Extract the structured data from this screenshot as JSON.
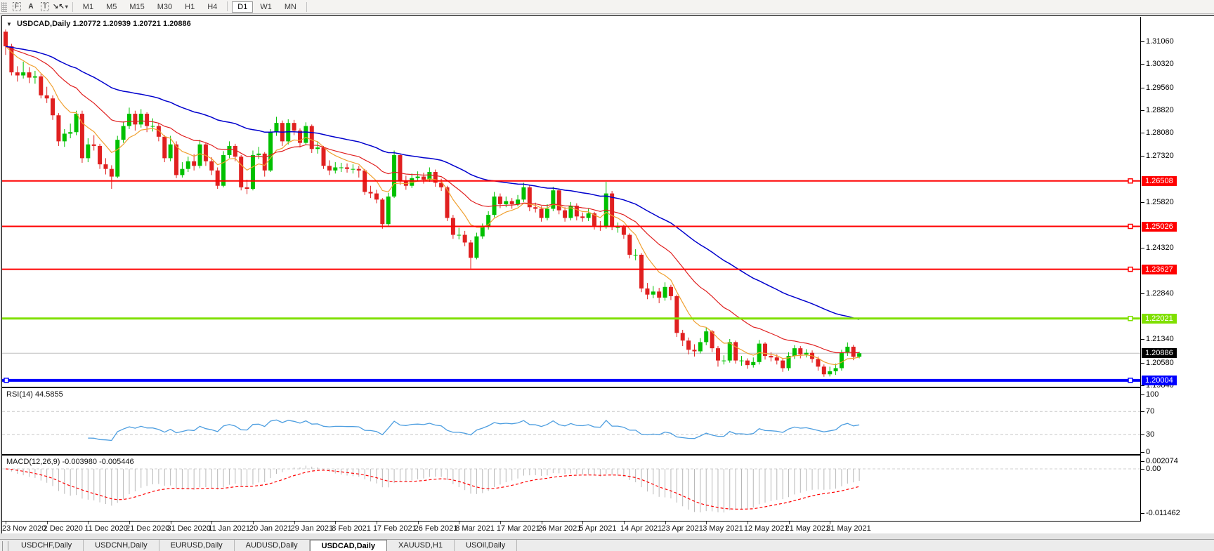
{
  "toolbar": {
    "icons": [
      {
        "name": "fibo-grid-icon",
        "glyph": "F"
      },
      {
        "name": "text-tool-icon",
        "glyph": "A"
      },
      {
        "name": "label-tool-icon",
        "glyph": "T"
      },
      {
        "name": "arrows-tool-icon",
        "glyph": "↘↖",
        "caret": "▾"
      }
    ],
    "timeframes": [
      "M1",
      "M5",
      "M15",
      "M30",
      "H1",
      "H4",
      "D1",
      "W1",
      "MN"
    ],
    "active_timeframe": "D1"
  },
  "chart_header": {
    "collapse_arrow": "▼",
    "symbol": "USDCAD,Daily",
    "open": "1.20772",
    "high": "1.20939",
    "low": "1.20721",
    "close": "1.20886"
  },
  "colors": {
    "bull": "#00C000",
    "bear": "#E02020",
    "ma_fast": "#F0A030",
    "ma_mid": "#E02020",
    "ma_slow": "#0000CD",
    "silver": "#C0C0C0",
    "level_red": "#FF0000",
    "level_green": "#80E000",
    "level_blue": "#0000FF",
    "rsi_line": "#4D9EE0",
    "macd_hist": "#B8B8B8",
    "macd_signal": "#FF0000"
  },
  "price_axis": {
    "ticks": [
      "1.31060",
      "1.30320",
      "1.29560",
      "1.28820",
      "1.28080",
      "1.27320",
      "1.25820",
      "1.24320",
      "1.22840",
      "1.21340",
      "1.20580",
      "1.19840"
    ],
    "badges": [
      {
        "text": "1.26508",
        "value": 1.26508,
        "color": "#FF0000"
      },
      {
        "text": "1.25026",
        "value": 1.25026,
        "color": "#FF0000"
      },
      {
        "text": "1.23627",
        "value": 1.23627,
        "color": "#FF0000"
      },
      {
        "text": "1.22021",
        "value": 1.22021,
        "color": "#80E000"
      },
      {
        "text": "1.20886",
        "value": 1.20886,
        "color": "#000000"
      },
      {
        "text": "1.20004",
        "value": 1.20004,
        "color": "#0000FF"
      }
    ]
  },
  "levels": [
    {
      "value": 1.26508,
      "color": "#FF0000",
      "width": 2
    },
    {
      "value": 1.25026,
      "color": "#FF0000",
      "width": 2
    },
    {
      "value": 1.23627,
      "color": "#FF0000",
      "width": 2
    },
    {
      "value": 1.22021,
      "color": "#80E000",
      "width": 3
    },
    {
      "value": 1.20004,
      "color": "#0000FF",
      "width": 4
    }
  ],
  "current_price": {
    "value": 1.20886,
    "text": "1.20886"
  },
  "rsi_panel": {
    "name": "RSI(14)",
    "value": "44.5855",
    "period": 14,
    "ticks": [
      {
        "text": "100",
        "value": 100
      },
      {
        "text": "70",
        "value": 70
      },
      {
        "text": "30",
        "value": 30
      },
      {
        "text": "0",
        "value": 0
      }
    ],
    "dashed_levels": [
      70,
      30
    ]
  },
  "macd_panel": {
    "name": "MACD(12,26,9)",
    "values": "-0.003980 -0.005446",
    "fast": 12,
    "slow": 26,
    "signal": 9,
    "ticks": [
      {
        "text": "0.002074",
        "value": 0.002074
      },
      {
        "text": "0.00",
        "value": 0
      },
      {
        "text": "-0.011462",
        "value": -0.011462
      }
    ]
  },
  "date_axis": {
    "labels": [
      "23 Nov 2020",
      "2 Dec 2020",
      "11 Dec 2020",
      "21 Dec 2020",
      "31 Dec 2020",
      "11 Jan 2021",
      "20 Jan 2021",
      "29 Jan 2021",
      "8 Feb 2021",
      "17 Feb 2021",
      "26 Feb 2021",
      "8 Mar 2021",
      "17 Mar 2021",
      "26 Mar 2021",
      "5 Apr 2021",
      "14 Apr 2021",
      "23 Apr 2021",
      "3 May 2021",
      "12 May 2021",
      "21 May 2021",
      "31 May 2021"
    ],
    "bars_per_label": 7
  },
  "tabs": {
    "items": [
      "USDCHF,Daily",
      "USDCNH,Daily",
      "EURUSD,Daily",
      "AUDUSD,Daily",
      "USDCAD,Daily",
      "XAUUSD,H1",
      "USOil,Daily"
    ],
    "active": "USDCAD,Daily"
  },
  "chart_data": {
    "type": "candlestick",
    "symbol": "USDCAD",
    "timeframe": "Daily",
    "title": "USDCAD,Daily 1.20772 1.20939 1.20721 1.20886",
    "price_range_visible": [
      1.19794,
      1.31816
    ],
    "overlays": [
      {
        "name": "ema-fast",
        "period": 8,
        "color": "#F0A030"
      },
      {
        "name": "ema-mid",
        "period": 21,
        "color": "#E02020"
      },
      {
        "name": "ema-slow",
        "period": 50,
        "color": "#0000CD"
      }
    ],
    "indicators": [
      {
        "name": "RSI",
        "period": 14,
        "last": 44.5855,
        "range": [
          0,
          100
        ],
        "levels": [
          30,
          70
        ]
      },
      {
        "name": "MACD",
        "params": [
          12,
          26,
          9
        ],
        "last_main": -0.00398,
        "last_signal": -0.005446,
        "range": [
          -0.011462,
          0.002074
        ]
      }
    ],
    "candles": [
      [
        1.3138,
        1.3145,
        1.3062,
        1.309
      ],
      [
        1.309,
        1.3098,
        1.2995,
        1.3005
      ],
      [
        1.3005,
        1.3025,
        1.2975,
        1.2995
      ],
      [
        1.2995,
        1.304,
        1.2985,
        1.3005
      ],
      [
        1.3005,
        1.3022,
        1.297,
        1.2988
      ],
      [
        1.2988,
        1.301,
        1.2968,
        1.2992
      ],
      [
        1.2992,
        1.3,
        1.292,
        1.293
      ],
      [
        1.293,
        1.2958,
        1.2905,
        1.292
      ],
      [
        1.292,
        1.293,
        1.285,
        1.2865
      ],
      [
        1.2865,
        1.2872,
        1.2765,
        1.278
      ],
      [
        1.278,
        1.282,
        1.2762,
        1.2805
      ],
      [
        1.2805,
        1.2838,
        1.279,
        1.281
      ],
      [
        1.281,
        1.288,
        1.28,
        1.287
      ],
      [
        1.287,
        1.288,
        1.271,
        1.2725
      ],
      [
        1.2725,
        1.279,
        1.2712,
        1.277
      ],
      [
        1.277,
        1.28,
        1.275,
        1.2765
      ],
      [
        1.2765,
        1.2772,
        1.269,
        1.2705
      ],
      [
        1.2705,
        1.2725,
        1.2672,
        1.269
      ],
      [
        1.269,
        1.2702,
        1.2625,
        1.2665
      ],
      [
        1.2665,
        1.2798,
        1.266,
        1.2785
      ],
      [
        1.2785,
        1.2845,
        1.2775,
        1.283
      ],
      [
        1.283,
        1.289,
        1.282,
        1.287
      ],
      [
        1.287,
        1.288,
        1.2815,
        1.2835
      ],
      [
        1.2835,
        1.2885,
        1.2825,
        1.287
      ],
      [
        1.287,
        1.2875,
        1.281,
        1.283
      ],
      [
        1.283,
        1.2855,
        1.2812,
        1.283
      ],
      [
        1.283,
        1.284,
        1.278,
        1.2795
      ],
      [
        1.2795,
        1.28,
        1.2712,
        1.2725
      ],
      [
        1.2725,
        1.2798,
        1.2715,
        1.277
      ],
      [
        1.277,
        1.278,
        1.266,
        1.267
      ],
      [
        1.267,
        1.2712,
        1.2662,
        1.269
      ],
      [
        1.269,
        1.273,
        1.268,
        1.2715
      ],
      [
        1.2715,
        1.2738,
        1.2685,
        1.27
      ],
      [
        1.27,
        1.2785,
        1.2692,
        1.277
      ],
      [
        1.277,
        1.2775,
        1.27,
        1.2715
      ],
      [
        1.2715,
        1.2728,
        1.267,
        1.2685
      ],
      [
        1.2685,
        1.2695,
        1.2625,
        1.2635
      ],
      [
        1.2635,
        1.2748,
        1.263,
        1.2735
      ],
      [
        1.2735,
        1.278,
        1.2725,
        1.2765
      ],
      [
        1.2765,
        1.2772,
        1.2715,
        1.273
      ],
      [
        1.273,
        1.2735,
        1.262,
        1.263
      ],
      [
        1.263,
        1.2655,
        1.2608,
        1.2625
      ],
      [
        1.2625,
        1.275,
        1.262,
        1.2735
      ],
      [
        1.2735,
        1.2762,
        1.2722,
        1.274
      ],
      [
        1.274,
        1.2745,
        1.2665,
        1.2685
      ],
      [
        1.2685,
        1.282,
        1.268,
        1.281
      ],
      [
        1.281,
        1.286,
        1.2798,
        1.284
      ],
      [
        1.284,
        1.2848,
        1.2765,
        1.278
      ],
      [
        1.278,
        1.2852,
        1.277,
        1.284
      ],
      [
        1.284,
        1.285,
        1.28,
        1.2815
      ],
      [
        1.2815,
        1.2822,
        1.276,
        1.2775
      ],
      [
        1.2775,
        1.2842,
        1.2768,
        1.283
      ],
      [
        1.283,
        1.2835,
        1.2742,
        1.2755
      ],
      [
        1.2755,
        1.278,
        1.274,
        1.276
      ],
      [
        1.276,
        1.2765,
        1.269,
        1.27
      ],
      [
        1.27,
        1.2718,
        1.267,
        1.2685
      ],
      [
        1.2685,
        1.2712,
        1.2675,
        1.2695
      ],
      [
        1.2695,
        1.271,
        1.268,
        1.2695
      ],
      [
        1.2695,
        1.2708,
        1.2678,
        1.269
      ],
      [
        1.269,
        1.2705,
        1.2675,
        1.269
      ],
      [
        1.269,
        1.27,
        1.2662,
        1.2685
      ],
      [
        1.2685,
        1.269,
        1.2605,
        1.2615
      ],
      [
        1.2615,
        1.2635,
        1.2595,
        1.261
      ],
      [
        1.261,
        1.2622,
        1.2578,
        1.259
      ],
      [
        1.259,
        1.2595,
        1.2495,
        1.251
      ],
      [
        1.251,
        1.2612,
        1.2505,
        1.26
      ],
      [
        1.26,
        1.275,
        1.2595,
        1.2735
      ],
      [
        1.2735,
        1.274,
        1.2638,
        1.265
      ],
      [
        1.265,
        1.2668,
        1.2622,
        1.2635
      ],
      [
        1.2635,
        1.2675,
        1.2628,
        1.266
      ],
      [
        1.266,
        1.2682,
        1.265,
        1.2665
      ],
      [
        1.2665,
        1.2678,
        1.2642,
        1.2655
      ],
      [
        1.2655,
        1.2695,
        1.2648,
        1.268
      ],
      [
        1.268,
        1.2688,
        1.2632,
        1.2645
      ],
      [
        1.2645,
        1.2658,
        1.2618,
        1.263
      ],
      [
        1.263,
        1.2635,
        1.252,
        1.253
      ],
      [
        1.253,
        1.254,
        1.2462,
        1.2475
      ],
      [
        1.2475,
        1.2498,
        1.246,
        1.2475
      ],
      [
        1.2475,
        1.2488,
        1.2438,
        1.245
      ],
      [
        1.245,
        1.2458,
        1.2365,
        1.24
      ],
      [
        1.24,
        1.2482,
        1.2395,
        1.247
      ],
      [
        1.247,
        1.2512,
        1.2462,
        1.25
      ],
      [
        1.25,
        1.2552,
        1.2492,
        1.254
      ],
      [
        1.254,
        1.2615,
        1.2532,
        1.26
      ],
      [
        1.26,
        1.261,
        1.2562,
        1.2575
      ],
      [
        1.2575,
        1.26,
        1.2565,
        1.2585
      ],
      [
        1.2585,
        1.2595,
        1.256,
        1.2575
      ],
      [
        1.2575,
        1.2605,
        1.2568,
        1.259
      ],
      [
        1.259,
        1.2645,
        1.2582,
        1.263
      ],
      [
        1.263,
        1.2638,
        1.2552,
        1.2565
      ],
      [
        1.2565,
        1.258,
        1.2548,
        1.256
      ],
      [
        1.256,
        1.2568,
        1.2518,
        1.253
      ],
      [
        1.253,
        1.2575,
        1.2522,
        1.256
      ],
      [
        1.256,
        1.2632,
        1.2552,
        1.262
      ],
      [
        1.262,
        1.2625,
        1.2542,
        1.2555
      ],
      [
        1.2555,
        1.2565,
        1.2518,
        1.253
      ],
      [
        1.253,
        1.2582,
        1.2522,
        1.257
      ],
      [
        1.257,
        1.2578,
        1.2522,
        1.2535
      ],
      [
        1.2535,
        1.2548,
        1.2518,
        1.253
      ],
      [
        1.253,
        1.256,
        1.252,
        1.2545
      ],
      [
        1.2545,
        1.255,
        1.2492,
        1.2505
      ],
      [
        1.2505,
        1.252,
        1.2488,
        1.25
      ],
      [
        1.25,
        1.2648,
        1.2495,
        1.261
      ],
      [
        1.261,
        1.2618,
        1.249,
        1.25
      ],
      [
        1.25,
        1.2515,
        1.2482,
        1.25
      ],
      [
        1.25,
        1.2508,
        1.2462,
        1.2475
      ],
      [
        1.2475,
        1.248,
        1.2398,
        1.241
      ],
      [
        1.241,
        1.2428,
        1.2392,
        1.241
      ],
      [
        1.241,
        1.2415,
        1.2288,
        1.23
      ],
      [
        1.23,
        1.2318,
        1.2265,
        1.228
      ],
      [
        1.228,
        1.2308,
        1.2268,
        1.229
      ],
      [
        1.229,
        1.2302,
        1.2252,
        1.227
      ],
      [
        1.227,
        1.232,
        1.226,
        1.2305
      ],
      [
        1.2305,
        1.2312,
        1.2262,
        1.2275
      ],
      [
        1.2275,
        1.228,
        1.2142,
        1.2155
      ],
      [
        1.2155,
        1.2165,
        1.2112,
        1.213
      ],
      [
        1.213,
        1.214,
        1.2085,
        1.21
      ],
      [
        1.21,
        1.2118,
        1.2078,
        1.2095
      ],
      [
        1.2095,
        1.2138,
        1.2088,
        1.2125
      ],
      [
        1.2125,
        1.2172,
        1.2115,
        1.216
      ],
      [
        1.216,
        1.2165,
        1.2092,
        1.2105
      ],
      [
        1.2105,
        1.2112,
        1.2045,
        1.2065
      ],
      [
        1.2065,
        1.2082,
        1.2052,
        1.2065
      ],
      [
        1.2065,
        1.2135,
        1.2058,
        1.2125
      ],
      [
        1.2125,
        1.213,
        1.2055,
        1.2065
      ],
      [
        1.2065,
        1.208,
        1.2048,
        1.2065
      ],
      [
        1.2065,
        1.2072,
        1.2038,
        1.205
      ],
      [
        1.205,
        1.2075,
        1.2042,
        1.206
      ],
      [
        1.206,
        1.2132,
        1.2052,
        1.212
      ],
      [
        1.212,
        1.2125,
        1.2068,
        1.208
      ],
      [
        1.208,
        1.2092,
        1.2062,
        1.2075
      ],
      [
        1.2075,
        1.2085,
        1.2052,
        1.2065
      ],
      [
        1.2065,
        1.2072,
        1.2028,
        1.204
      ],
      [
        1.204,
        1.2092,
        1.2032,
        1.208
      ],
      [
        1.208,
        1.2115,
        1.207,
        1.2105
      ],
      [
        1.2105,
        1.2112,
        1.2072,
        1.2085
      ],
      [
        1.2085,
        1.2102,
        1.2075,
        1.209
      ],
      [
        1.209,
        1.2098,
        1.2058,
        1.207
      ],
      [
        1.207,
        1.2078,
        1.2032,
        1.2045
      ],
      [
        1.2045,
        1.2052,
        1.2012,
        1.202
      ],
      [
        1.202,
        1.2045,
        1.2013,
        1.203
      ],
      [
        1.203,
        1.2055,
        1.2018,
        1.204
      ],
      [
        1.204,
        1.21,
        1.2032,
        1.209
      ],
      [
        1.209,
        1.2124,
        1.208,
        1.211
      ],
      [
        1.211,
        1.2116,
        1.2066,
        1.2077
      ],
      [
        1.20772,
        1.20939,
        1.20721,
        1.20886
      ]
    ]
  }
}
